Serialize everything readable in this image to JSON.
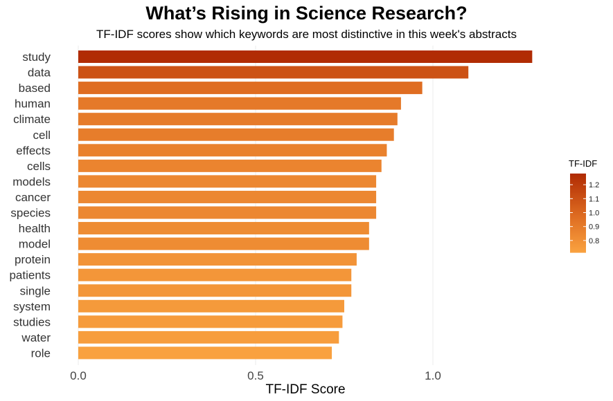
{
  "chart_data": {
    "type": "bar",
    "orientation": "horizontal",
    "title": "What’s Rising in Science Research?",
    "subtitle": "TF-IDF scores show which keywords are most distinctive in this week's abstracts",
    "xlabel": "TF-IDF Score",
    "ylabel": "",
    "xlim": [
      0,
      1.32
    ],
    "x_ticks": [
      "0.0",
      "0.5",
      "1.0"
    ],
    "x_tick_values": [
      0.0,
      0.5,
      1.0
    ],
    "grid": true,
    "categories": [
      "study",
      "data",
      "based",
      "human",
      "climate",
      "cell",
      "effects",
      "cells",
      "models",
      "cancer",
      "species",
      "health",
      "model",
      "protein",
      "patients",
      "single",
      "system",
      "studies",
      "water",
      "role"
    ],
    "values": [
      1.28,
      1.1,
      0.97,
      0.91,
      0.9,
      0.89,
      0.87,
      0.855,
      0.84,
      0.84,
      0.84,
      0.82,
      0.82,
      0.785,
      0.77,
      0.77,
      0.75,
      0.745,
      0.735,
      0.715
    ],
    "legend": {
      "title": "TF-IDF",
      "position": "right",
      "ticks": [
        "1.2",
        "1.1",
        "1.0",
        "0.9",
        "0.8"
      ],
      "tick_values": [
        1.2,
        1.1,
        1.0,
        0.9,
        0.8
      ],
      "min": 0.715,
      "max": 1.28
    },
    "colors": {
      "low": "#f9a13f",
      "mid": "#df6d22",
      "high": "#b12c04"
    }
  }
}
